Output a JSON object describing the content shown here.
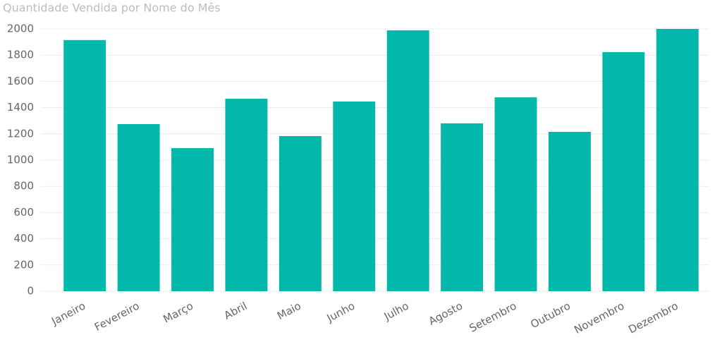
{
  "chart_data": {
    "type": "bar",
    "title": "Quantidade Vendida por Nome do Mês",
    "categories": [
      "Janeiro",
      "Fevereiro",
      "Março",
      "Abril",
      "Maio",
      "Junho",
      "Julho",
      "Agosto",
      "Setembro",
      "Outubro",
      "Novembro",
      "Dezembro"
    ],
    "values": [
      1915,
      1274,
      1091,
      1468,
      1183,
      1446,
      1989,
      1280,
      1478,
      1215,
      1823,
      2000
    ],
    "color": "#01b8aa",
    "ylim": [
      0,
      2000
    ],
    "yticks": [
      0,
      200,
      400,
      600,
      800,
      1000,
      1200,
      1400,
      1600,
      1800,
      2000
    ],
    "grid": true
  }
}
